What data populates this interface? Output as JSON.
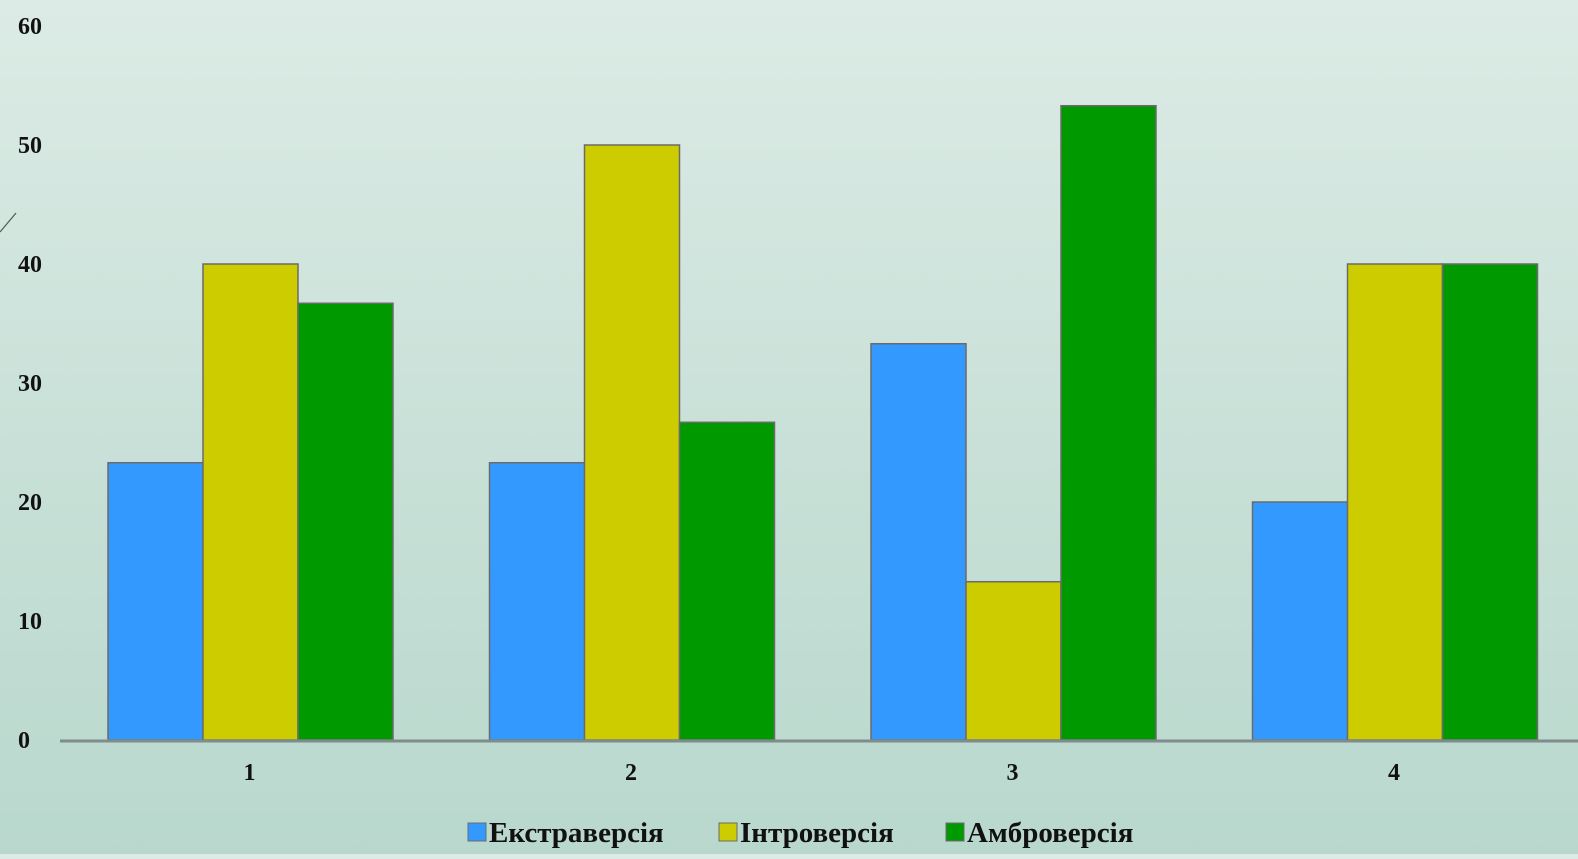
{
  "chart_data": {
    "type": "bar",
    "title": "",
    "xlabel": "",
    "ylabel": "",
    "categories": [
      "1",
      "2",
      "3",
      "4"
    ],
    "series": [
      {
        "name": "Екстраверсія",
        "color": "#3399ff",
        "values": [
          23.3,
          23.3,
          33.3,
          20
        ]
      },
      {
        "name": "Інтроверсія",
        "color": "#cccc00",
        "values": [
          40,
          50,
          13.3,
          40
        ]
      },
      {
        "name": "Амброверсія",
        "color": "#009900",
        "values": [
          36.7,
          26.7,
          53.3,
          40
        ]
      }
    ],
    "ylim": [
      0,
      60
    ],
    "yticks": [
      "0",
      "10",
      "20",
      "30",
      "40",
      "50",
      "60"
    ],
    "grid": false,
    "legend_position": "bottom"
  }
}
